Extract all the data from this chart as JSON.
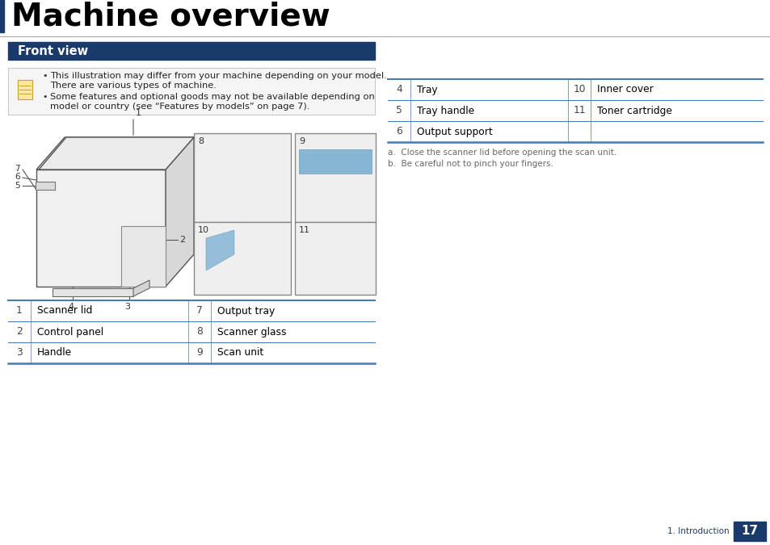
{
  "title": "Machine overview",
  "title_color": "#000000",
  "title_fontsize": 28,
  "section_header": "Front view",
  "section_header_color": "#ffffff",
  "section_header_bg": "#1a3a6b",
  "page_bg": "#ffffff",
  "blue_line_color": "#4a7ab5",
  "note_text1a": "This illustration may differ from your machine depending on your model.",
  "note_text1b": "There are various types of machine.",
  "note_text2a": "Some features and optional goods may not be available depending on",
  "note_text2b": "model or country (see “Features by models” on page 7).",
  "table1_rows": [
    [
      "1",
      "Scanner lid",
      "7",
      "Output tray"
    ],
    [
      "2",
      "Control panel",
      "8",
      "Scanner glass"
    ],
    [
      "3",
      "Handle",
      "9",
      "Scan unit"
    ]
  ],
  "table2_rows": [
    [
      "4",
      "Tray",
      "10",
      "Inner cover"
    ],
    [
      "5",
      "Tray handle",
      "11",
      "Toner cartridge"
    ],
    [
      "6",
      "Output support",
      "",
      ""
    ]
  ],
  "footnote_a": "a.  Close the scanner lid before opening the scan unit.",
  "footnote_b": "b.  Be careful not to pinch your fingers.",
  "page_num": "17",
  "page_label": "1. Introduction",
  "table_line_color": "#4a7ab5",
  "table_text_color": "#000000",
  "num_color": "#444444",
  "footer_num_bg": "#1a3a6b",
  "footer_num_color": "#ffffff",
  "title_bar_color": "#1a3a6b",
  "separator_color": "#c0c0c0",
  "note_box_color": "#e8e8e8",
  "note_box_border": "#b0b0b0"
}
